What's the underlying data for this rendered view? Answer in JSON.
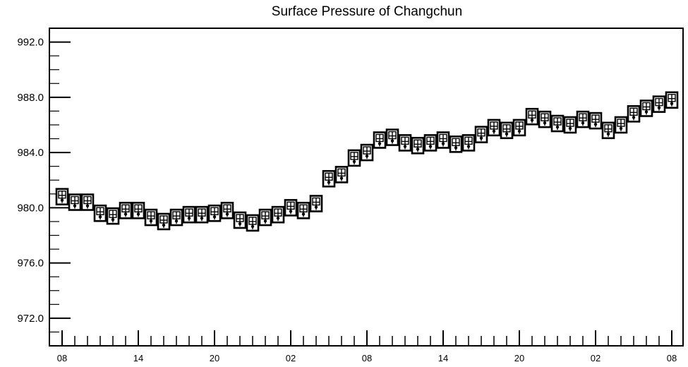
{
  "chart_data": {
    "type": "scatter",
    "title": "Surface Pressure of Changchun",
    "xlabel": "",
    "ylabel": "",
    "ylim": [
      970.0,
      993.0
    ],
    "yticks": [
      972.0,
      976.0,
      980.0,
      984.0,
      988.0,
      992.0
    ],
    "ytick_labels": [
      "972.0",
      "976.0",
      "980.0",
      "984.0",
      "988.0",
      "992.0"
    ],
    "xtick_labels": [
      "08",
      "14",
      "20",
      "02",
      "08",
      "14",
      "20",
      "02",
      "08"
    ],
    "hours_per_point": 1,
    "marker": "boxed box-and-whisker",
    "grid": false,
    "series": [
      {
        "values": [
          980.8,
          980.4,
          980.4,
          979.6,
          979.4,
          979.8,
          979.8,
          979.3,
          979.0,
          979.3,
          979.5,
          979.5,
          979.6,
          979.8,
          979.1,
          978.9,
          979.3,
          979.5,
          980.0,
          979.8,
          980.3,
          982.1,
          982.4,
          983.6,
          984.0,
          984.9,
          985.1,
          984.7,
          984.5,
          984.7,
          984.9,
          984.6,
          984.7,
          985.3,
          985.8,
          985.6,
          985.8,
          986.6,
          986.4,
          986.1,
          986.0,
          986.4,
          986.3,
          985.6,
          986.0,
          986.8,
          987.2,
          987.5,
          987.8
        ]
      }
    ]
  }
}
